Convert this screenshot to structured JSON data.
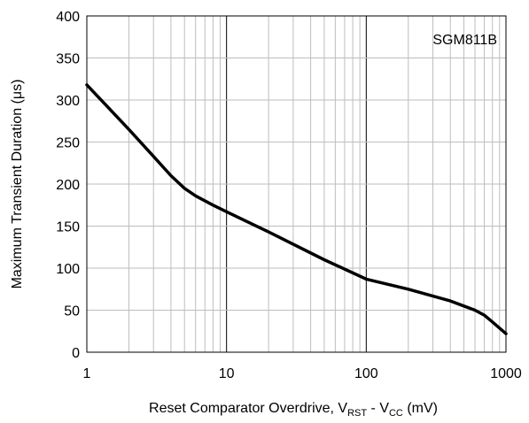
{
  "chart_data": {
    "type": "line",
    "title": "",
    "xlabel": {
      "parts": [
        {
          "text": "Reset Comparator Overdrive, V",
          "sub": false
        },
        {
          "text": "RST",
          "sub": true
        },
        {
          "text": " - V",
          "sub": false
        },
        {
          "text": "CC",
          "sub": true
        },
        {
          "text": " (mV)",
          "sub": false
        }
      ]
    },
    "ylabel": "Maximum Transient Duration (μs)",
    "x_scale": "log",
    "xlim": [
      1,
      1000
    ],
    "ylim": [
      0,
      400
    ],
    "x_tick_labels": [
      "1",
      "10",
      "100",
      "1000"
    ],
    "y_tick_labels": [
      "0",
      "50",
      "100",
      "150",
      "200",
      "250",
      "300",
      "350",
      "400"
    ],
    "grid": true,
    "annotation": "SGM811B",
    "series": [
      {
        "color": "#000000",
        "x": [
          1,
          2,
          3,
          4,
          5,
          6,
          8,
          10,
          20,
          50,
          100,
          200,
          400,
          500,
          600,
          700,
          800,
          1000
        ],
        "y": [
          318,
          265,
          233,
          210,
          195,
          186,
          175,
          167,
          143,
          110,
          87,
          75,
          61,
          55,
          50,
          44,
          36,
          22
        ]
      }
    ]
  }
}
